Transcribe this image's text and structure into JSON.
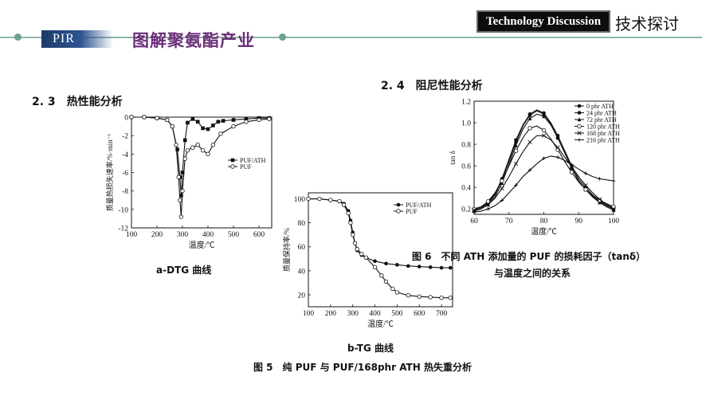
{
  "header": {
    "badge": "PIR",
    "title": "图解聚氨酯产业",
    "tag_en": "Technology Discussion",
    "tag_cn": "技术探讨"
  },
  "sections": {
    "s23": "2. 3　热性能分析",
    "s24": "2. 4　阻尼性能分析"
  },
  "captions": {
    "a": "a-DTG 曲线",
    "b": "b-TG 曲线",
    "fig5": "图 5　纯 PUF 与 PUF/168phr ATH 热失重分析",
    "fig6_line1": "图 6　不同 ATH 添加量的 PUF 的损耗因子（tanδ）",
    "fig6_line2": "与温度之间的关系"
  },
  "chart_data": [
    {
      "id": "dtg",
      "type": "line",
      "xlabel": "温度/℃",
      "ylabel": "质量热损失速率/%·min⁻¹",
      "xlim": [
        100,
        650
      ],
      "ylim": [
        -12,
        0
      ],
      "xticks": [
        100,
        200,
        300,
        400,
        500,
        600
      ],
      "yticks": [
        0,
        -2,
        -4,
        -6,
        -8,
        -10,
        -12
      ],
      "legend_position": "right",
      "series": [
        {
          "name": "PUF/ATH",
          "marker": "filled-square",
          "x": [
            100,
            150,
            200,
            240,
            260,
            280,
            290,
            295,
            300,
            310,
            320,
            340,
            360,
            380,
            400,
            420,
            440,
            460,
            500,
            550,
            600,
            640
          ],
          "y": [
            0,
            0,
            -0.1,
            -0.3,
            -1.0,
            -3.5,
            -6.5,
            -8.5,
            -6.0,
            -2.5,
            -0.6,
            -0.2,
            -0.5,
            -1.2,
            -1.3,
            -0.9,
            -0.5,
            -0.4,
            -0.3,
            -0.2,
            -0.1,
            -0.1
          ]
        },
        {
          "name": "PUF",
          "marker": "open-circle",
          "x": [
            100,
            150,
            200,
            240,
            260,
            275,
            285,
            290,
            295,
            300,
            310,
            320,
            340,
            360,
            380,
            400,
            420,
            450,
            500,
            550,
            600,
            640
          ],
          "y": [
            0,
            0,
            -0.1,
            -0.3,
            -1.0,
            -3.0,
            -6.5,
            -9.0,
            -10.8,
            -8.0,
            -4.5,
            -3.6,
            -3.3,
            -3.0,
            -3.6,
            -4.0,
            -3.0,
            -1.8,
            -1.0,
            -0.5,
            -0.3,
            -0.2
          ]
        }
      ]
    },
    {
      "id": "tg",
      "type": "line",
      "xlabel": "温度/℃",
      "ylabel": "质量保持率/%",
      "xlim": [
        100,
        750
      ],
      "ylim": [
        10,
        105
      ],
      "xticks": [
        100,
        200,
        300,
        400,
        500,
        600,
        700
      ],
      "yticks": [
        100,
        80,
        60,
        40,
        20
      ],
      "legend_position": "top-right",
      "series": [
        {
          "name": "PUF/ATH",
          "marker": "filled-circle",
          "x": [
            100,
            150,
            200,
            240,
            260,
            280,
            290,
            300,
            310,
            320,
            340,
            360,
            400,
            450,
            500,
            550,
            600,
            650,
            700,
            740
          ],
          "y": [
            100,
            100,
            99,
            98,
            96,
            90,
            82,
            72,
            63,
            57,
            53,
            51,
            48,
            46,
            45,
            44,
            43.5,
            43,
            42.5,
            42.5
          ]
        },
        {
          "name": "PUF",
          "marker": "open-circle",
          "x": [
            100,
            150,
            200,
            240,
            260,
            280,
            290,
            300,
            310,
            320,
            340,
            360,
            400,
            430,
            450,
            480,
            500,
            550,
            600,
            650,
            700,
            740
          ],
          "y": [
            100,
            100,
            99,
            98,
            95,
            88,
            80,
            70,
            63,
            58,
            54,
            51,
            43,
            36,
            31,
            25,
            22,
            19.5,
            18.5,
            18,
            17.5,
            17.5
          ]
        }
      ]
    },
    {
      "id": "tan",
      "type": "line",
      "xlabel": "温度/℃",
      "ylabel": "tan δ",
      "xlim": [
        60,
        100
      ],
      "ylim": [
        0.15,
        1.2
      ],
      "xticks": [
        60,
        70,
        80,
        90,
        100
      ],
      "yticks": [
        0.2,
        0.4,
        0.6,
        0.8,
        1.0,
        1.2
      ],
      "legend_position": "top-right",
      "series": [
        {
          "name": "0 phr ATH",
          "marker": "filled-circle",
          "x": [
            60,
            62,
            64,
            66,
            68,
            70,
            72,
            74,
            76,
            78,
            80,
            82,
            84,
            86,
            88,
            90,
            92,
            94,
            96,
            98,
            100
          ],
          "y": [
            0.2,
            0.22,
            0.26,
            0.34,
            0.48,
            0.66,
            0.84,
            0.98,
            1.08,
            1.12,
            1.09,
            1.0,
            0.88,
            0.74,
            0.6,
            0.48,
            0.4,
            0.33,
            0.28,
            0.24,
            0.21
          ]
        },
        {
          "name": "24 phr ATH",
          "marker": "filled-circle",
          "x": [
            60,
            62,
            64,
            66,
            68,
            70,
            72,
            74,
            76,
            78,
            80,
            82,
            84,
            86,
            88,
            90,
            92,
            94,
            96,
            98,
            100
          ],
          "y": [
            0.19,
            0.21,
            0.25,
            0.33,
            0.47,
            0.64,
            0.82,
            0.97,
            1.07,
            1.11,
            1.08,
            0.99,
            0.86,
            0.72,
            0.58,
            0.46,
            0.38,
            0.32,
            0.27,
            0.23,
            0.2
          ]
        },
        {
          "name": "72 phr ATH",
          "marker": "filled-triangle",
          "x": [
            60,
            62,
            64,
            66,
            68,
            70,
            72,
            74,
            76,
            78,
            80,
            82,
            84,
            86,
            88,
            90,
            92,
            94,
            96,
            98,
            100
          ],
          "y": [
            0.18,
            0.2,
            0.24,
            0.31,
            0.44,
            0.61,
            0.79,
            0.94,
            1.04,
            1.08,
            1.06,
            0.98,
            0.86,
            0.72,
            0.58,
            0.46,
            0.38,
            0.31,
            0.26,
            0.22,
            0.19
          ]
        },
        {
          "name": "120 phr ATH",
          "marker": "open-circle",
          "x": [
            60,
            62,
            64,
            66,
            68,
            70,
            72,
            74,
            76,
            78,
            80,
            82,
            84,
            86,
            88,
            90,
            92,
            94,
            96,
            98,
            100
          ],
          "y": [
            0.2,
            0.22,
            0.27,
            0.35,
            0.46,
            0.6,
            0.74,
            0.86,
            0.95,
            0.97,
            0.93,
            0.85,
            0.75,
            0.64,
            0.54,
            0.45,
            0.38,
            0.32,
            0.28,
            0.25,
            0.22
          ]
        },
        {
          "name": "168 phr ATH",
          "marker": "x",
          "x": [
            60,
            62,
            64,
            66,
            68,
            70,
            72,
            74,
            76,
            78,
            80,
            82,
            84,
            86,
            88,
            90,
            92,
            94,
            96,
            98,
            100
          ],
          "y": [
            0.19,
            0.21,
            0.24,
            0.3,
            0.39,
            0.5,
            0.62,
            0.73,
            0.82,
            0.88,
            0.88,
            0.84,
            0.77,
            0.68,
            0.59,
            0.5,
            0.42,
            0.35,
            0.29,
            0.24,
            0.2
          ]
        },
        {
          "name": "216 phr ATH",
          "marker": "cross",
          "x": [
            60,
            62,
            64,
            66,
            68,
            70,
            72,
            74,
            76,
            78,
            80,
            82,
            84,
            86,
            88,
            90,
            92,
            94,
            96,
            98,
            100
          ],
          "y": [
            0.17,
            0.18,
            0.2,
            0.23,
            0.28,
            0.35,
            0.42,
            0.5,
            0.56,
            0.62,
            0.67,
            0.69,
            0.68,
            0.65,
            0.61,
            0.57,
            0.53,
            0.5,
            0.48,
            0.47,
            0.46
          ]
        }
      ]
    }
  ]
}
